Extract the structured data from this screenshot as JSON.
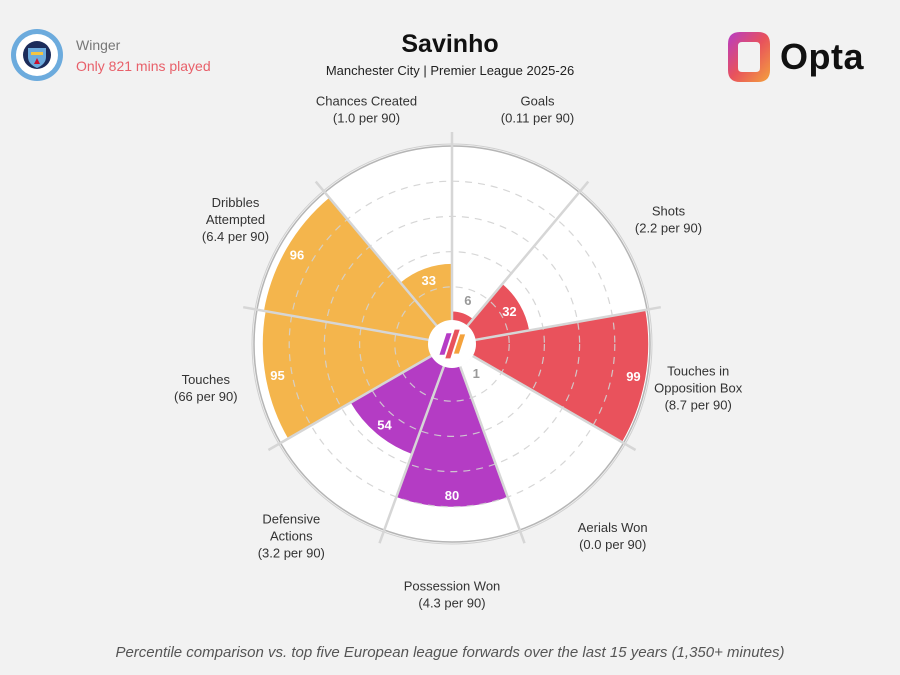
{
  "header": {
    "position": "Winger",
    "minutes_note": "Only 821 mins played",
    "player_name": "Savinho",
    "subtitle": "Manchester City | Premier League 2025-26",
    "brand": "Opta",
    "crest_text_top": "MANCHESTER",
    "crest_text_bottom": "CITY"
  },
  "footnote": "Percentile comparison vs. top five European league forwards over the last 15 years (1,350+ minutes)",
  "colors": {
    "attacking": "#e9525c",
    "possession": "#b43cc4",
    "dribbling": "#f4b54c",
    "grid": "#bbbbbb",
    "background": "#f2f2f2"
  },
  "chart_data": {
    "type": "radar",
    "scale": [
      0,
      100
    ],
    "segments": [
      {
        "metric": "Goals",
        "detail": "(0.11 per 90)",
        "percentile": 6,
        "group": "attacking"
      },
      {
        "metric": "Shots",
        "detail": "(2.2 per 90)",
        "percentile": 32,
        "group": "attacking"
      },
      {
        "metric": [
          "Touches in",
          "Opposition Box"
        ],
        "detail": "(8.7 per 90)",
        "percentile": 99,
        "group": "attacking"
      },
      {
        "metric": "Aerials Won",
        "detail": "(0.0 per 90)",
        "percentile": 1,
        "group": "possession"
      },
      {
        "metric": "Possession Won",
        "detail": "(4.3 per 90)",
        "percentile": 80,
        "group": "possession"
      },
      {
        "metric": [
          "Defensive",
          "Actions"
        ],
        "detail": "(3.2 per 90)",
        "percentile": 54,
        "group": "possession"
      },
      {
        "metric": "Touches",
        "detail": "(66 per 90)",
        "percentile": 95,
        "group": "dribbling"
      },
      {
        "metric": [
          "Dribbles",
          "Attempted"
        ],
        "detail": "(6.4 per 90)",
        "percentile": 96,
        "group": "dribbling"
      },
      {
        "metric": "Chances Created",
        "detail": "(1.0 per 90)",
        "percentile": 33,
        "group": "dribbling"
      }
    ]
  }
}
